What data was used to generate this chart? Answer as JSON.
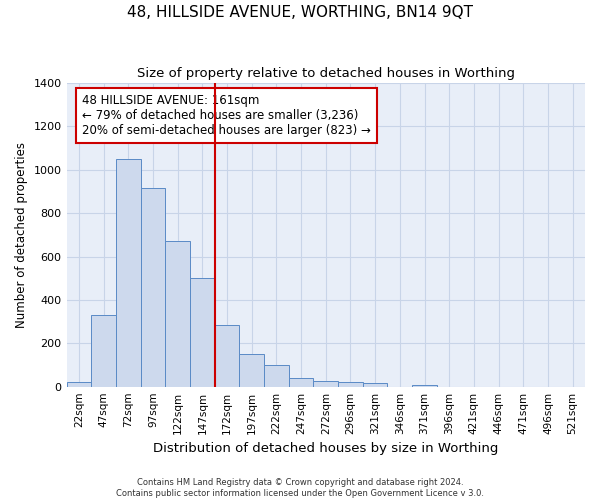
{
  "title1": "48, HILLSIDE AVENUE, WORTHING, BN14 9QT",
  "title2": "Size of property relative to detached houses in Worthing",
  "xlabel": "Distribution of detached houses by size in Worthing",
  "ylabel": "Number of detached properties",
  "bin_labels": [
    "22sqm",
    "47sqm",
    "72sqm",
    "97sqm",
    "122sqm",
    "147sqm",
    "172sqm",
    "197sqm",
    "222sqm",
    "247sqm",
    "272sqm",
    "296sqm",
    "321sqm",
    "346sqm",
    "371sqm",
    "396sqm",
    "421sqm",
    "446sqm",
    "471sqm",
    "496sqm",
    "521sqm"
  ],
  "bar_values": [
    20,
    330,
    1050,
    915,
    670,
    500,
    285,
    150,
    100,
    40,
    25,
    20,
    15,
    0,
    10,
    0,
    0,
    0,
    0,
    0,
    0
  ],
  "bar_color": "#cdd9ed",
  "bar_edge_color": "#5a8ac6",
  "grid_color": "#c8d4e8",
  "background_color": "#e8eef8",
  "annotation_text": "48 HILLSIDE AVENUE: 161sqm\n← 79% of detached houses are smaller (3,236)\n20% of semi-detached houses are larger (823) →",
  "annotation_box_color": "#ffffff",
  "annotation_text_color": "#000000",
  "red_color": "#cc0000",
  "ylim": [
    0,
    1400
  ],
  "yticks": [
    0,
    200,
    400,
    600,
    800,
    1000,
    1200,
    1400
  ],
  "title1_fontsize": 11,
  "title2_fontsize": 9.5,
  "footnote": "Contains HM Land Registry data © Crown copyright and database right 2024.\nContains public sector information licensed under the Open Government Licence v 3.0."
}
